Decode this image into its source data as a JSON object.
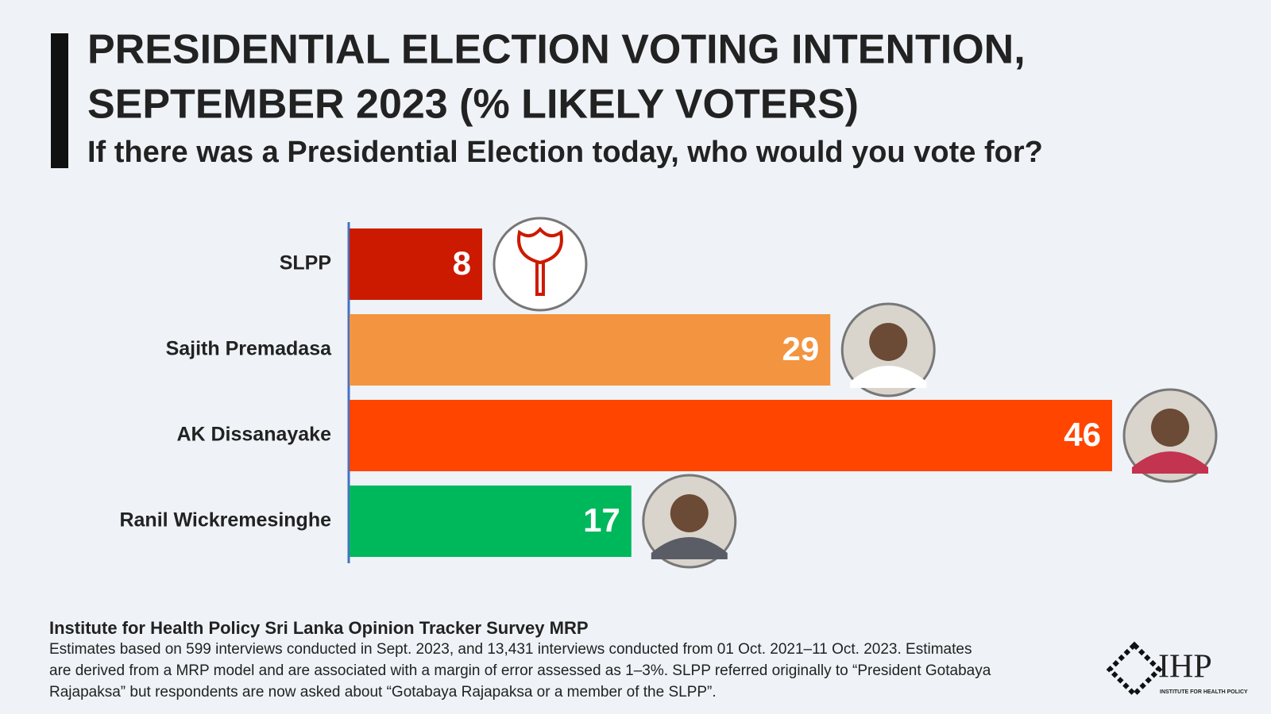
{
  "chart_data": {
    "type": "bar",
    "orientation": "horizontal",
    "title": [
      "PRESIDENTIAL ELECTION VOTING INTENTION,",
      "SEPTEMBER 2023 (% LIKELY VOTERS)"
    ],
    "subtitle": "If there was a Presidential Election today, who would you vote for?",
    "categories": [
      "SLPP",
      "Sajith Premadasa",
      "AK Dissanayake",
      "Ranil Wickremesinghe"
    ],
    "values": [
      8,
      29,
      46,
      17
    ],
    "colors": [
      "#cc1a00",
      "#f39440",
      "#ff4500",
      "#00b85c"
    ]
  },
  "footer": {
    "source": "Institute for Health Policy Sri Lanka Opinion Tracker Survey MRP",
    "notes": [
      "Estimates based on 599 interviews conducted in Sept. 2023, and 13,431 interviews conducted from 01 Oct. 2021–11 Oct. 2023. Estimates",
      "are derived from a MRP model and are associated with a margin of error assessed as 1–3%. SLPP referred originally to “President Gotabaya",
      "Rajapaksa” but respondents are now asked about “Gotabaya Rajapaksa or a member of the SLPP”."
    ],
    "logo": "IHP",
    "logo_caption": "INSTITUTE FOR HEALTH POLICY"
  }
}
